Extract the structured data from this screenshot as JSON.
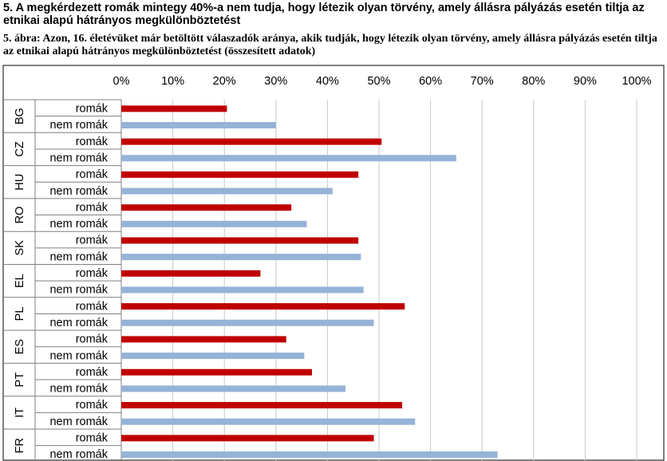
{
  "header": {
    "title": "5. A megkérdezett romák mintegy 40%-a nem tudja, hogy létezik olyan törvény, amely állásra pályázás esetén tiltja az etnikai alapú hátrányos megkülönböztetést",
    "caption": "5. ábra: Azon, 16. életévüket már betöltött válaszadók aránya, akik tudják, hogy létezik olyan törvény, amely állásra pályázás esetén tiltja az etnikai alapú hátrányos megkülönböztetést (összesített adatok)"
  },
  "chart_data": {
    "type": "bar",
    "orientation": "horizontal",
    "title": "",
    "xlabel": "",
    "ylabel": "",
    "xlim": [
      0,
      100
    ],
    "x_ticks": [
      "0%",
      "10%",
      "20%",
      "30%",
      "40%",
      "50%",
      "60%",
      "70%",
      "80%",
      "90%",
      "100%"
    ],
    "categories": [
      "BG",
      "CZ",
      "HU",
      "RO",
      "SK",
      "EL",
      "PL",
      "ES",
      "PT",
      "IT",
      "FR"
    ],
    "grid": true,
    "series": [
      {
        "name": "romák",
        "color": "#c00000",
        "values": [
          20.5,
          50.5,
          46,
          33,
          46,
          27,
          55,
          32,
          37,
          54.5,
          49
        ]
      },
      {
        "name": "nem romák",
        "color": "#95b3d7",
        "values": [
          30,
          65,
          41,
          36,
          46.5,
          47,
          49,
          35.5,
          43.5,
          57,
          73
        ]
      }
    ]
  }
}
